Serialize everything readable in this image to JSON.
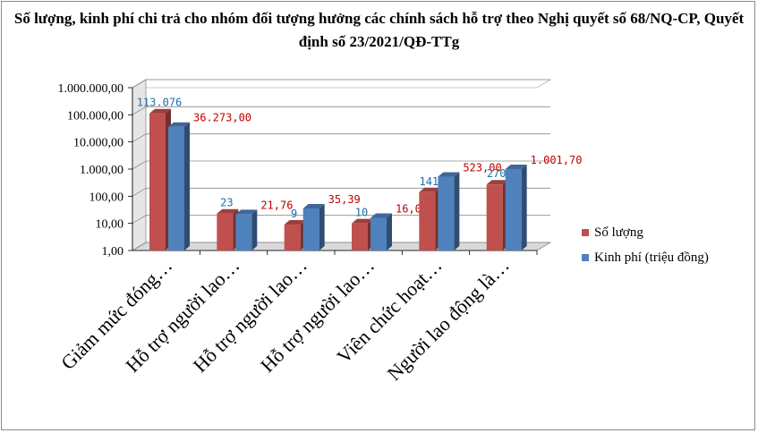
{
  "chart_data": {
    "type": "bar",
    "title": "Số lượng, kinh phí chi trả cho nhóm đối tượng hưởng các chính sách hỗ trợ theo Nghị quyết số 68/NQ-CP, Quyết định số 23/2021/QĐ-TTg",
    "categories": [
      "Giảm mức đóng…",
      "Hỗ trợ người lao…",
      "Hỗ trợ người lao…",
      "Hỗ trợ người lao…",
      "Viên chức hoạt…",
      "Người lao động là…"
    ],
    "series": [
      {
        "name": "Số lượng",
        "color": "#c0504d",
        "values": [
          113076,
          23,
          9,
          10,
          141,
          270
        ],
        "labels": [
          "113.076",
          "23",
          "9",
          "10",
          "141",
          "270"
        ]
      },
      {
        "name": "Kinh phí (triệu đồng)",
        "color": "#4f81bd",
        "values": [
          36273.0,
          21.76,
          35.39,
          16.0,
          523.0,
          1001.7
        ],
        "labels": [
          "36.273,00",
          "21,76",
          "35,39",
          "16,00",
          "523,00",
          "1.001,70"
        ]
      }
    ],
    "y_scale": "log",
    "ylim": [
      1,
      1000000
    ],
    "y_ticks": [
      1,
      10,
      100,
      1000,
      10000,
      100000,
      1000000
    ],
    "y_tick_labels": [
      "1,00",
      "10,00",
      "100,00",
      "1.000,00",
      "10.000,00",
      "100.000,00",
      "1.000.000,00"
    ],
    "grid": true,
    "legend_position": "right"
  }
}
